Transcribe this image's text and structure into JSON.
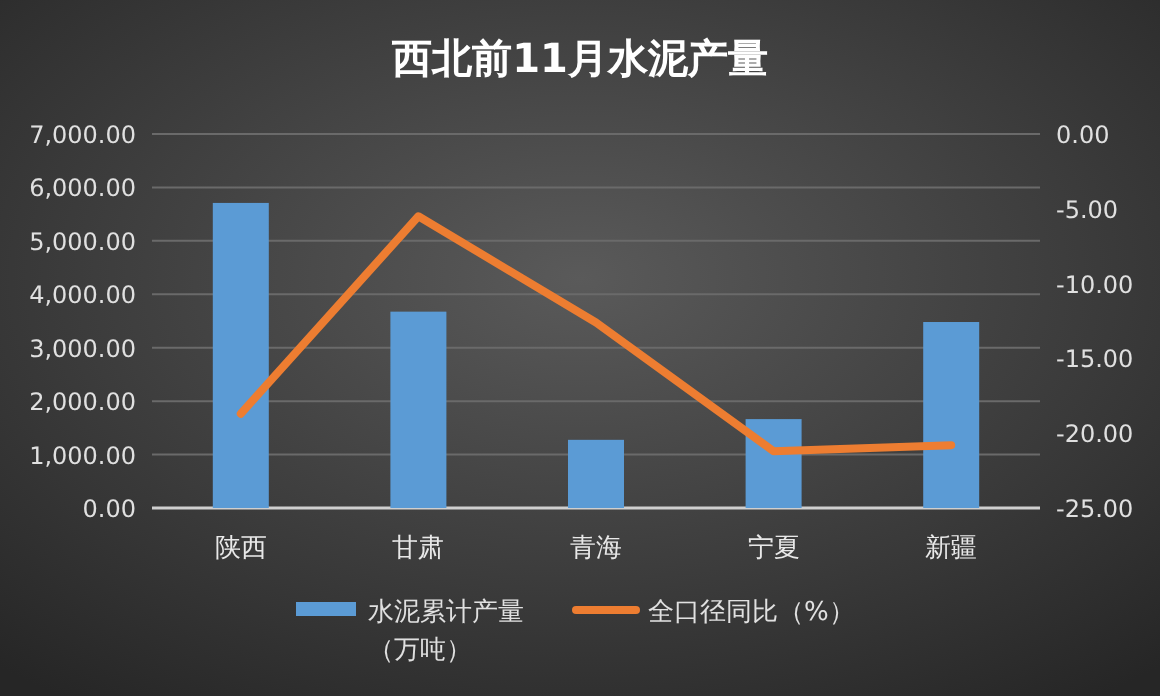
{
  "chart_data": {
    "type": "bar",
    "title": "西北前11月水泥产量",
    "categories": [
      "陕西",
      "甘肃",
      "青海",
      "宁夏",
      "新疆"
    ],
    "series": [
      {
        "name": "水泥累计产量（万吨）",
        "color": "#5b9bd5",
        "values": [
          5710,
          3675,
          1276,
          1664,
          3481
        ]
      },
      {
        "name": "全口径同比（%）",
        "type": "line",
        "axis": "y2",
        "color": "#ed7d31",
        "values": [
          -18.7,
          -5.5,
          -12.6,
          -21.2,
          -20.8
        ]
      }
    ],
    "ylim": [
      0,
      7000
    ],
    "yticks": [
      {
        "value": 0,
        "label": "0.00"
      },
      {
        "value": 1000,
        "label": "1,000.00"
      },
      {
        "value": 2000,
        "label": "2,000.00"
      },
      {
        "value": 3000,
        "label": "3,000.00"
      },
      {
        "value": 4000,
        "label": "4,000.00"
      },
      {
        "value": 5000,
        "label": "5,000.00"
      },
      {
        "value": 6000,
        "label": "6,000.00"
      },
      {
        "value": 7000,
        "label": "7,000.00"
      }
    ],
    "y2lim": [
      -25,
      0
    ],
    "y2ticks": [
      {
        "value": -25,
        "label": "-25.00"
      },
      {
        "value": -20,
        "label": "-20.00"
      },
      {
        "value": -15,
        "label": "-15.00"
      },
      {
        "value": -10,
        "label": "-10.00"
      },
      {
        "value": -5,
        "label": "-5.00"
      },
      {
        "value": 0,
        "label": "0.00"
      }
    ],
    "grid": "y",
    "legend": "bottom"
  }
}
